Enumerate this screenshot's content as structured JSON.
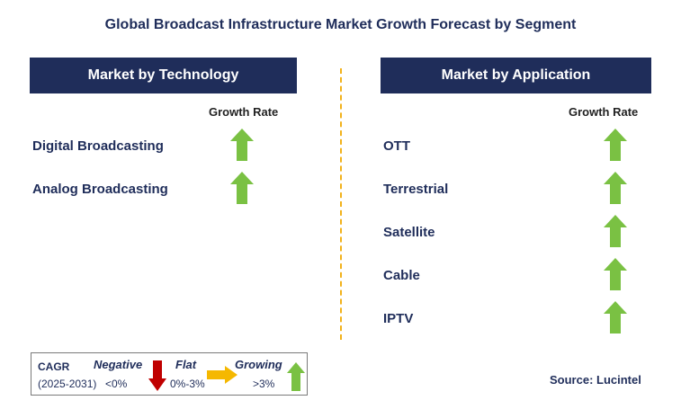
{
  "title": "Global Broadcast Infrastructure Market Growth Forecast by Segment",
  "colors": {
    "navy": "#1f2d5a",
    "growing_green": "#7ac143",
    "negative_red": "#c00000",
    "flat_amber": "#f5b800",
    "divider": "#f2b21b"
  },
  "technology": {
    "header": "Market by Technology",
    "growth_rate_label": "Growth Rate",
    "items": [
      {
        "label": "Digital Broadcasting",
        "trend": "growing"
      },
      {
        "label": "Analog Broadcasting",
        "trend": "growing"
      }
    ]
  },
  "application": {
    "header": "Market by Application",
    "growth_rate_label": "Growth Rate",
    "items": [
      {
        "label": "OTT",
        "trend": "growing"
      },
      {
        "label": "Terrestrial",
        "trend": "growing"
      },
      {
        "label": "Satellite",
        "trend": "growing"
      },
      {
        "label": "Cable",
        "trend": "growing"
      },
      {
        "label": "IPTV",
        "trend": "growing"
      }
    ]
  },
  "legend": {
    "cagr_label": "CAGR",
    "period": "(2025-2031)",
    "negative": {
      "label": "Negative",
      "range": "<0%",
      "icon": "down-arrow-icon"
    },
    "flat": {
      "label": "Flat",
      "range": "0%-3%",
      "icon": "right-arrow-icon"
    },
    "growing": {
      "label": "Growing",
      "range": ">3%",
      "icon": "up-arrow-icon"
    }
  },
  "source": "Source: Lucintel"
}
